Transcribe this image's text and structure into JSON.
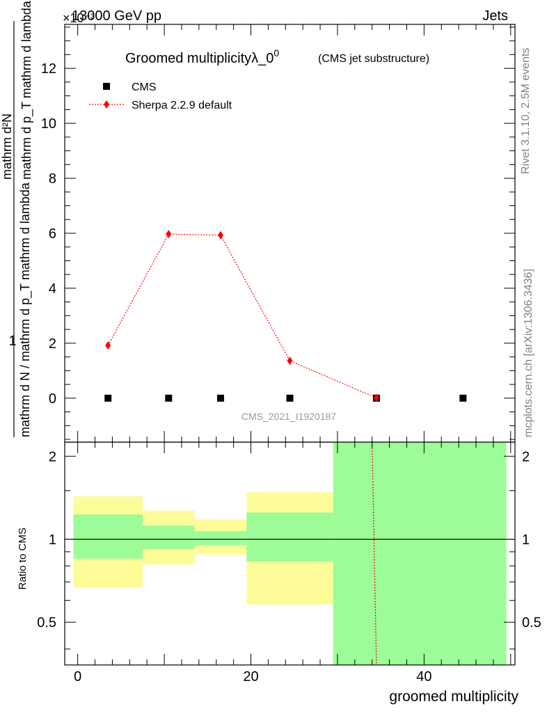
{
  "header": {
    "energy_label": "13000 GeV pp",
    "exponent_label": "×10⁻³",
    "category_label": "Jets"
  },
  "side_labels": {
    "rivet": "Rivet 3.1.10,  2.5M events",
    "mcplots": "mcplots.cern.ch [arXiv:1306.3436]"
  },
  "chart_data": [
    {
      "type": "scatter",
      "title": "Groomed multiplicity",
      "title_symbol": "λ_0",
      "title_superscript": "0",
      "subtitle": "(CMS jet substructure)",
      "ylabel_numerator": "1",
      "ylabel_denominator": "mathrm d N / mathrm d p_T mathrm d lambda",
      "ylabel_overall_numerator": "mathrm d²N",
      "ylabel_overall_denominator": "mathrm d p_T mathrm d lambda",
      "watermark": "CMS_2021_I1920187",
      "y_scale_factor": "×10⁻³",
      "ylim": [
        -1.6,
        13.6
      ],
      "xlim": [
        -1.5,
        50.5
      ],
      "y_ticks": [
        0,
        2,
        4,
        6,
        8,
        10,
        12
      ],
      "legend_position": "top-left",
      "legend": [
        "CMS",
        "Sherpa 2.2.9 default"
      ],
      "series": [
        {
          "name": "CMS",
          "marker": "square",
          "color": "#000000",
          "x": [
            3.5,
            10.5,
            16.5,
            24.5,
            34.5,
            44.5
          ],
          "y": [
            0,
            0,
            0,
            0,
            0,
            0
          ]
        },
        {
          "name": "Sherpa 2.2.9 default",
          "marker": "diamond",
          "line": "dotted",
          "color": "#ff0000",
          "x": [
            3.5,
            10.5,
            16.5,
            24.5,
            34.5
          ],
          "y": [
            1.92,
            5.97,
            5.93,
            1.36,
            0.01
          ]
        }
      ]
    },
    {
      "type": "area",
      "ylabel": "Ratio to CMS",
      "xlabel": "groomed multiplicity",
      "ylim": [
        0.35,
        2.25
      ],
      "xlim": [
        -1.5,
        50.5
      ],
      "x_ticks": [
        0,
        20,
        40
      ],
      "y_ticks": [
        0.5,
        1,
        2
      ],
      "y_tick_labels": [
        "0.5",
        "1",
        "2"
      ],
      "bands": [
        {
          "x0": -0.5,
          "x1": 7.5,
          "green_lo": 0.85,
          "green_hi": 1.23,
          "yellow_lo": 0.67,
          "yellow_hi": 1.43
        },
        {
          "x0": 7.5,
          "x1": 13.5,
          "green_lo": 0.92,
          "green_hi": 1.12,
          "yellow_lo": 0.81,
          "yellow_hi": 1.27
        },
        {
          "x0": 13.5,
          "x1": 19.5,
          "green_lo": 0.95,
          "green_hi": 1.07,
          "yellow_lo": 0.88,
          "yellow_hi": 1.18
        },
        {
          "x0": 19.5,
          "x1": 29.5,
          "green_lo": 0.83,
          "green_hi": 1.25,
          "yellow_lo": 0.58,
          "yellow_hi": 1.48
        },
        {
          "x0": 29.5,
          "x1": 49.5,
          "green_lo": 0.35,
          "green_hi": 2.25,
          "yellow_lo": 0.35,
          "yellow_hi": 2.25
        }
      ],
      "reference_line": 1,
      "sherpa_ratio_line": {
        "x": [
          34.0,
          34.5
        ],
        "y": [
          2.25,
          0.35
        ],
        "color": "#ff0000"
      },
      "colors": {
        "green": "#9cfc98",
        "yellow": "#fcfc98"
      }
    }
  ]
}
